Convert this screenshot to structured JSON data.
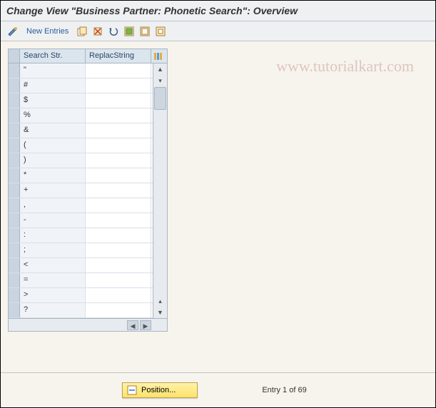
{
  "title": "Change View \"Business Partner: Phonetic Search\": Overview",
  "toolbar": {
    "new_entries": "New Entries"
  },
  "watermark": "www.tutorialkart.com",
  "table": {
    "columns": [
      "Search Str.",
      "ReplacString"
    ],
    "rows": [
      {
        "search": "\"",
        "replace": ""
      },
      {
        "search": "#",
        "replace": ""
      },
      {
        "search": "$",
        "replace": ""
      },
      {
        "search": "%",
        "replace": ""
      },
      {
        "search": "&",
        "replace": ""
      },
      {
        "search": "(",
        "replace": ""
      },
      {
        "search": ")",
        "replace": ""
      },
      {
        "search": "*",
        "replace": ""
      },
      {
        "search": "+",
        "replace": ""
      },
      {
        "search": ",",
        "replace": ""
      },
      {
        "search": "-",
        "replace": ""
      },
      {
        "search": ":",
        "replace": ""
      },
      {
        "search": ";",
        "replace": ""
      },
      {
        "search": "<",
        "replace": ""
      },
      {
        "search": "=",
        "replace": ""
      },
      {
        "search": ">",
        "replace": ""
      },
      {
        "search": "?",
        "replace": ""
      }
    ]
  },
  "footer": {
    "position_label": "Position...",
    "entry_text": "Entry 1 of 69"
  },
  "colors": {
    "title_bg": "#eef0f2",
    "content_bg": "#f7f4ed",
    "grid_header_bg": "#dbe5ee",
    "row_selector_bg": "#c8d4e0",
    "cell_alt_bg": "#f0f4f8",
    "border": "#a9b5c2",
    "position_btn_bg": "#ffe26b"
  }
}
